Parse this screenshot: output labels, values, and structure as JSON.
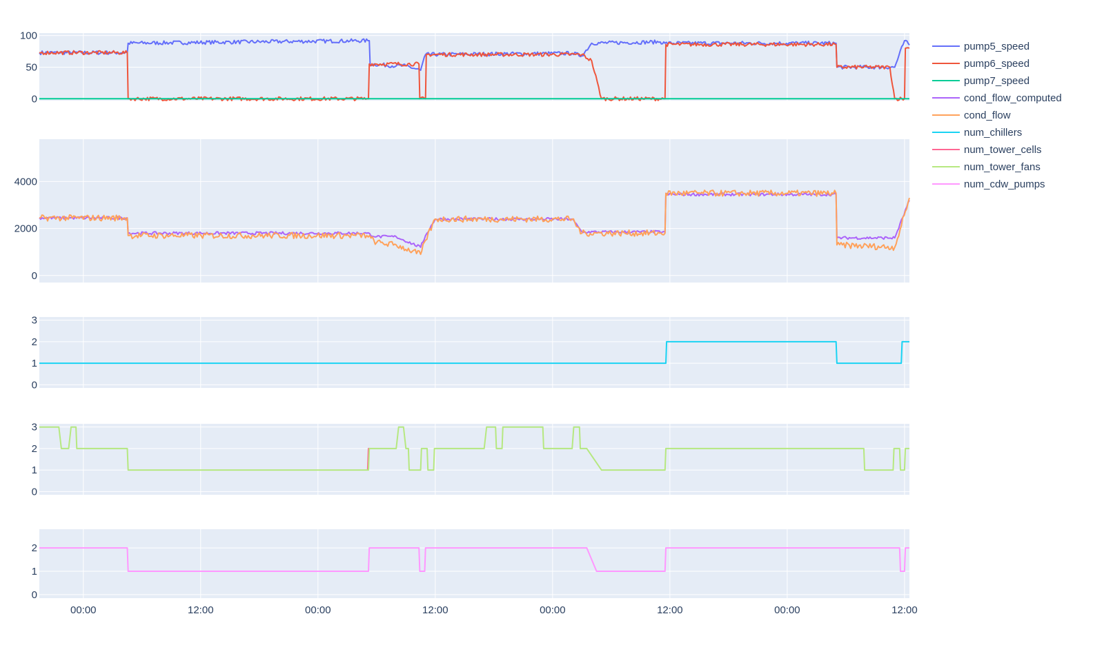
{
  "chart_data": {
    "type": "line",
    "x_axis": {
      "kind": "date",
      "range": [
        "2021-06-30T19:30",
        "2021-07-04T12:30"
      ],
      "tick_values": [
        "2021-07-01T00:00",
        "2021-07-01T12:00",
        "2021-07-02T00:00",
        "2021-07-02T12:00",
        "2021-07-03T00:00",
        "2021-07-03T12:00",
        "2021-07-04T00:00",
        "2021-07-04T12:00"
      ],
      "tick_labels": [
        "00:00",
        "12:00",
        "00:00",
        "12:00",
        "00:00",
        "12:00",
        "00:00",
        "12:00"
      ],
      "grid": true
    },
    "legend": {
      "placement": "top-right",
      "entries": [
        "pump5_speed",
        "pump6_speed",
        "pump7_speed",
        "cond_flow_computed",
        "cond_flow",
        "num_chillers",
        "num_tower_cells",
        "num_tower_fans",
        "num_cdw_pumps"
      ]
    },
    "colors": {
      "pump5_speed": "#636efa",
      "pump6_speed": "#ef553b",
      "pump7_speed": "#00cc96",
      "cond_flow_computed": "#ab63fa",
      "cond_flow": "#ffa15a",
      "num_chillers": "#19d3f3",
      "num_tower_cells": "#ff6692",
      "num_tower_fans": "#b6e880",
      "num_cdw_pumps": "#ff97ff"
    },
    "panels": [
      {
        "yrange": [
          -3,
          104
        ],
        "yticks": [
          0,
          50,
          100
        ],
        "series": [
          {
            "name": "pump5_speed",
            "noise": 3,
            "points": [
              [
                "2021-06-30T19:30",
                73
              ],
              [
                "2021-07-01T04:30",
                73
              ],
              [
                "2021-07-01T04:35",
                88
              ],
              [
                "2021-07-02T05:15",
                92
              ],
              [
                "2021-07-02T05:20",
                55
              ],
              [
                "2021-07-02T08:00",
                52
              ],
              [
                "2021-07-02T09:00",
                52
              ],
              [
                "2021-07-02T10:30",
                45
              ],
              [
                "2021-07-02T11:00",
                70
              ],
              [
                "2021-07-03T02:00",
                72
              ],
              [
                "2021-07-03T03:00",
                68
              ],
              [
                "2021-07-03T04:00",
                88
              ],
              [
                "2021-07-03T11:00",
                90
              ],
              [
                "2021-07-03T11:30",
                88
              ],
              [
                "2021-07-04T05:00",
                88
              ],
              [
                "2021-07-04T05:05",
                50
              ],
              [
                "2021-07-04T11:00",
                50
              ],
              [
                "2021-07-04T12:00",
                92
              ],
              [
                "2021-07-04T12:30",
                85
              ]
            ]
          },
          {
            "name": "pump6_speed",
            "noise": 3,
            "points": [
              [
                "2021-06-30T19:30",
                73
              ],
              [
                "2021-07-01T04:30",
                73
              ],
              [
                "2021-07-01T04:35",
                0
              ],
              [
                "2021-07-02T05:10",
                0
              ],
              [
                "2021-07-02T05:15",
                55
              ],
              [
                "2021-07-02T10:20",
                55
              ],
              [
                "2021-07-02T10:25",
                0
              ],
              [
                "2021-07-02T11:00",
                0
              ],
              [
                "2021-07-02T11:05",
                70
              ],
              [
                "2021-07-03T03:00",
                70
              ],
              [
                "2021-07-03T04:00",
                60
              ],
              [
                "2021-07-03T05:00",
                0
              ],
              [
                "2021-07-03T11:30",
                0
              ],
              [
                "2021-07-03T11:35",
                86
              ],
              [
                "2021-07-04T05:00",
                86
              ],
              [
                "2021-07-04T05:05",
                50
              ],
              [
                "2021-07-04T10:30",
                50
              ],
              [
                "2021-07-04T11:00",
                0
              ],
              [
                "2021-07-04T12:00",
                0
              ],
              [
                "2021-07-04T12:05",
                80
              ],
              [
                "2021-07-04T12:30",
                80
              ]
            ]
          },
          {
            "name": "pump7_speed",
            "noise": 0,
            "points": [
              [
                "2021-06-30T19:30",
                0
              ],
              [
                "2021-07-04T12:30",
                0
              ]
            ]
          }
        ]
      },
      {
        "yrange": [
          -300,
          5800
        ],
        "yticks": [
          0,
          2000,
          4000
        ],
        "series": [
          {
            "name": "cond_flow_computed",
            "noise": 60,
            "points": [
              [
                "2021-06-30T19:30",
                2450
              ],
              [
                "2021-07-01T04:30",
                2450
              ],
              [
                "2021-07-01T04:35",
                1800
              ],
              [
                "2021-07-02T05:00",
                1800
              ],
              [
                "2021-07-02T06:00",
                1650
              ],
              [
                "2021-07-02T08:00",
                1650
              ],
              [
                "2021-07-02T10:30",
                1200
              ],
              [
                "2021-07-02T11:00",
                1700
              ],
              [
                "2021-07-02T12:00",
                2400
              ],
              [
                "2021-07-03T02:00",
                2400
              ],
              [
                "2021-07-03T03:00",
                1850
              ],
              [
                "2021-07-03T11:30",
                1850
              ],
              [
                "2021-07-03T11:35",
                3450
              ],
              [
                "2021-07-04T05:00",
                3450
              ],
              [
                "2021-07-04T05:05",
                1600
              ],
              [
                "2021-07-04T11:00",
                1600
              ],
              [
                "2021-07-04T12:30",
                3200
              ]
            ]
          },
          {
            "name": "cond_flow",
            "noise": 130,
            "points": [
              [
                "2021-06-30T19:30",
                2450
              ],
              [
                "2021-07-01T04:30",
                2450
              ],
              [
                "2021-07-01T04:35",
                1700
              ],
              [
                "2021-07-02T05:00",
                1700
              ],
              [
                "2021-07-02T06:00",
                1400
              ],
              [
                "2021-07-02T08:00",
                1300
              ],
              [
                "2021-07-02T10:30",
                900
              ],
              [
                "2021-07-02T11:00",
                1500
              ],
              [
                "2021-07-02T12:00",
                2400
              ],
              [
                "2021-07-03T02:00",
                2400
              ],
              [
                "2021-07-03T03:00",
                1800
              ],
              [
                "2021-07-03T11:30",
                1800
              ],
              [
                "2021-07-03T11:35",
                3500
              ],
              [
                "2021-07-04T05:00",
                3500
              ],
              [
                "2021-07-04T05:05",
                1300
              ],
              [
                "2021-07-04T11:00",
                1200
              ],
              [
                "2021-07-04T12:30",
                3300
              ]
            ]
          }
        ]
      },
      {
        "yrange": [
          -0.15,
          3.15
        ],
        "yticks": [
          0,
          1,
          2,
          3
        ],
        "series": [
          {
            "name": "num_chillers",
            "noise": 0,
            "points": [
              [
                "2021-06-30T19:30",
                1
              ],
              [
                "2021-07-03T11:35",
                1
              ],
              [
                "2021-07-03T11:40",
                2
              ],
              [
                "2021-07-04T05:00",
                2
              ],
              [
                "2021-07-04T05:05",
                1
              ],
              [
                "2021-07-04T11:40",
                1
              ],
              [
                "2021-07-04T11:45",
                2
              ],
              [
                "2021-07-04T12:30",
                2
              ]
            ]
          }
        ]
      },
      {
        "yrange": [
          -0.15,
          3.15
        ],
        "yticks": [
          0,
          1,
          2,
          3
        ],
        "series": [
          {
            "name": "num_tower_cells",
            "noise": 0,
            "points": [
              [
                "2021-07-02T05:05",
                1
              ],
              [
                "2021-07-02T05:10",
                2
              ],
              [
                "2021-07-02T05:15",
                2
              ]
            ]
          },
          {
            "name": "num_tower_fans",
            "noise": 0,
            "points": [
              [
                "2021-06-30T19:30",
                3
              ],
              [
                "2021-06-30T21:30",
                3
              ],
              [
                "2021-06-30T21:45",
                2
              ],
              [
                "2021-06-30T22:30",
                2
              ],
              [
                "2021-06-30T22:45",
                3
              ],
              [
                "2021-06-30T23:15",
                3
              ],
              [
                "2021-06-30T23:20",
                2
              ],
              [
                "2021-07-01T04:30",
                2
              ],
              [
                "2021-07-01T04:35",
                1
              ],
              [
                "2021-07-02T05:10",
                1
              ],
              [
                "2021-07-02T05:15",
                2
              ],
              [
                "2021-07-02T08:00",
                2
              ],
              [
                "2021-07-02T08:15",
                3
              ],
              [
                "2021-07-02T08:45",
                3
              ],
              [
                "2021-07-02T09:00",
                2
              ],
              [
                "2021-07-02T09:15",
                2
              ],
              [
                "2021-07-02T09:20",
                1
              ],
              [
                "2021-07-02T10:30",
                1
              ],
              [
                "2021-07-02T10:35",
                2
              ],
              [
                "2021-07-02T11:10",
                2
              ],
              [
                "2021-07-02T11:15",
                1
              ],
              [
                "2021-07-02T11:50",
                1
              ],
              [
                "2021-07-02T11:55",
                2
              ],
              [
                "2021-07-02T17:00",
                2
              ],
              [
                "2021-07-02T17:15",
                3
              ],
              [
                "2021-07-02T18:10",
                3
              ],
              [
                "2021-07-02T18:15",
                2
              ],
              [
                "2021-07-02T18:50",
                2
              ],
              [
                "2021-07-02T18:55",
                3
              ],
              [
                "2021-07-02T23:00",
                3
              ],
              [
                "2021-07-02T23:05",
                2
              ],
              [
                "2021-07-03T02:00",
                2
              ],
              [
                "2021-07-03T02:10",
                3
              ],
              [
                "2021-07-03T02:45",
                3
              ],
              [
                "2021-07-03T02:50",
                2
              ],
              [
                "2021-07-03T03:30",
                2
              ],
              [
                "2021-07-03T05:00",
                1
              ],
              [
                "2021-07-03T11:30",
                1
              ],
              [
                "2021-07-03T11:35",
                2
              ],
              [
                "2021-07-04T07:50",
                2
              ],
              [
                "2021-07-04T07:55",
                1
              ],
              [
                "2021-07-04T10:50",
                1
              ],
              [
                "2021-07-04T10:55",
                2
              ],
              [
                "2021-07-04T11:30",
                2
              ],
              [
                "2021-07-04T11:35",
                1
              ],
              [
                "2021-07-04T12:00",
                1
              ],
              [
                "2021-07-04T12:05",
                2
              ],
              [
                "2021-07-04T12:30",
                2
              ]
            ]
          }
        ]
      },
      {
        "yrange": [
          -0.15,
          2.8
        ],
        "yticks": [
          0,
          1,
          2
        ],
        "series": [
          {
            "name": "num_cdw_pumps",
            "noise": 0,
            "points": [
              [
                "2021-06-30T19:30",
                2
              ],
              [
                "2021-07-01T04:30",
                2
              ],
              [
                "2021-07-01T04:35",
                1
              ],
              [
                "2021-07-02T05:10",
                1
              ],
              [
                "2021-07-02T05:15",
                2
              ],
              [
                "2021-07-02T10:20",
                2
              ],
              [
                "2021-07-02T10:25",
                1
              ],
              [
                "2021-07-02T10:55",
                1
              ],
              [
                "2021-07-02T11:00",
                2
              ],
              [
                "2021-07-03T03:30",
                2
              ],
              [
                "2021-07-03T04:30",
                1
              ],
              [
                "2021-07-03T11:30",
                1
              ],
              [
                "2021-07-03T11:35",
                2
              ],
              [
                "2021-07-04T11:30",
                2
              ],
              [
                "2021-07-04T11:35",
                1
              ],
              [
                "2021-07-04T12:00",
                1
              ],
              [
                "2021-07-04T12:05",
                2
              ],
              [
                "2021-07-04T12:30",
                2
              ]
            ]
          }
        ]
      }
    ]
  }
}
